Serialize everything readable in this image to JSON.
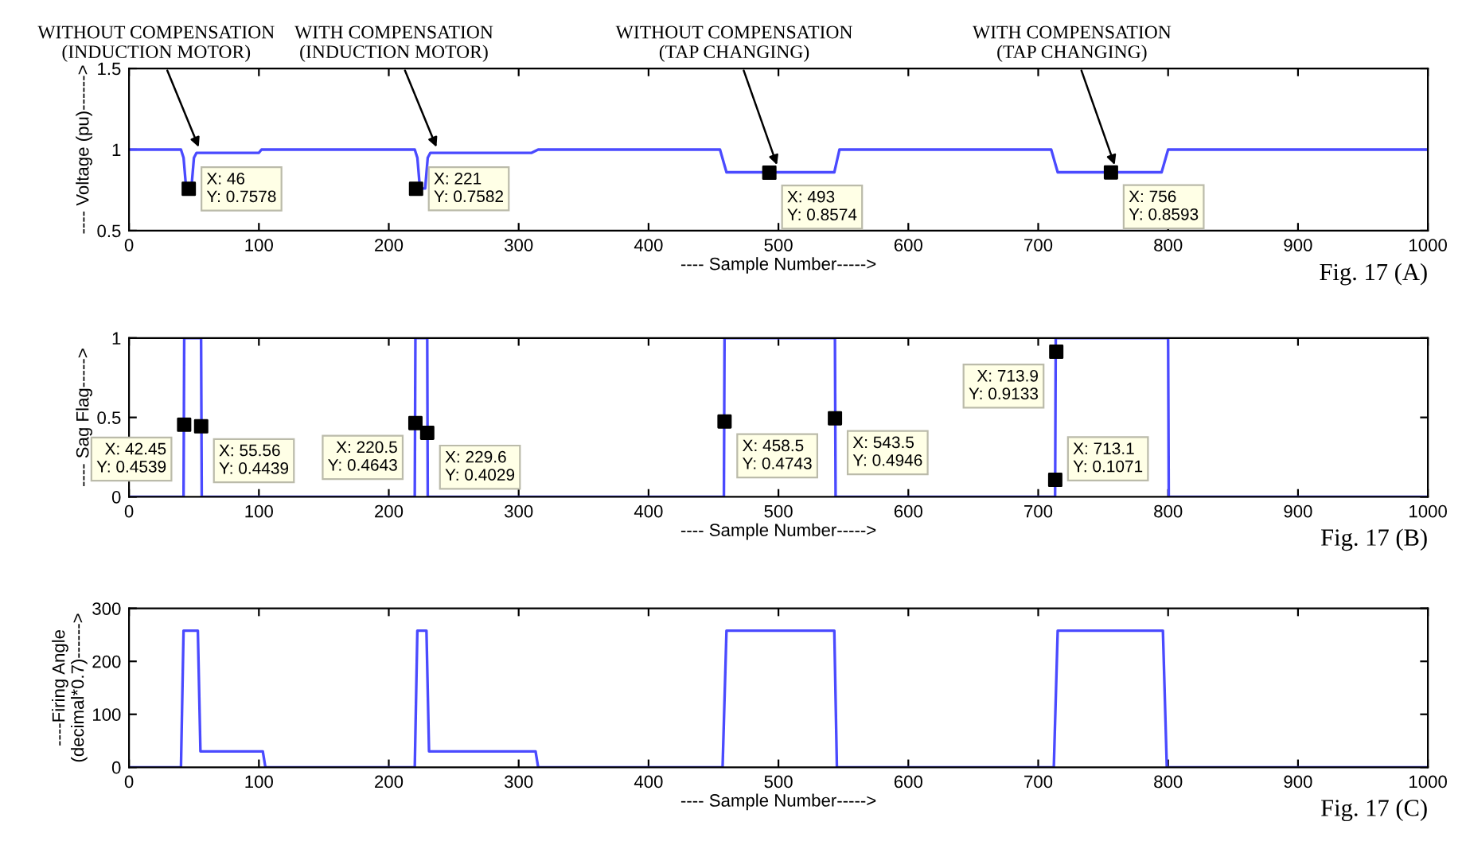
{
  "chart_data": [
    {
      "type": "line",
      "ylabel": "---- Voltage (pu)------>",
      "xlabel": "---- Sample Number----->",
      "xlim": [
        0,
        1000
      ],
      "xticks": [
        0,
        100,
        200,
        300,
        400,
        500,
        600,
        700,
        800,
        900,
        1000
      ],
      "ylim": [
        0.5,
        1.5
      ],
      "yticks": [
        0.5,
        1,
        1.5
      ],
      "annotations": [
        {
          "text": "WITHOUT COMPENSATION\n(INDUCTION MOTOR)",
          "x": 55,
          "y": 0.99
        },
        {
          "text": "WITH COMPENSATION\n(INDUCTION MOTOR)",
          "x": 238,
          "y": 0.99
        },
        {
          "text": "WITHOUT COMPENSATION\n(TAP CHANGING)",
          "x": 500,
          "y": 0.88
        },
        {
          "text": "WITH COMPENSATION\n(TAP CHANGING)",
          "x": 760,
          "y": 0.88
        },
        "Fig. 17 (A)"
      ],
      "series": [
        {
          "color": "#4a4aff",
          "x": [
            0,
            40,
            42,
            44,
            48,
            50,
            52,
            100,
            102,
            220,
            222,
            224,
            228,
            230,
            232,
            310,
            315,
            455,
            460,
            543,
            547,
            710,
            715,
            795,
            800,
            1000
          ],
          "values": [
            1.0,
            1.0,
            0.95,
            0.76,
            0.76,
            0.95,
            0.98,
            0.98,
            1.0,
            1.0,
            0.95,
            0.76,
            0.76,
            0.95,
            0.98,
            0.98,
            1.0,
            1.0,
            0.86,
            0.86,
            1.0,
            1.0,
            0.86,
            0.86,
            1.0,
            1.0
          ]
        },
        {
          "type": "scatter",
          "marker": "square",
          "color": "#000000",
          "x": [
            46,
            221,
            493,
            756
          ],
          "values": [
            0.7578,
            0.7582,
            0.8574,
            0.8593
          ],
          "value_labels": [
            "X: 46\nY: 0.7578",
            "X: 221\nY: 0.7582",
            "X: 493\nY: 0.8574",
            "X: 756\nY: 0.8593"
          ]
        }
      ]
    },
    {
      "type": "line",
      "ylabel": "---- Sag Flag----->",
      "xlabel": "---- Sample Number----->",
      "xlim": [
        0,
        1000
      ],
      "xticks": [
        0,
        100,
        200,
        300,
        400,
        500,
        600,
        700,
        800,
        900,
        1000
      ],
      "ylim": [
        0,
        1
      ],
      "yticks": [
        0,
        0.5,
        1
      ],
      "annotations": [
        "Fig. 17 (B)"
      ],
      "series": [
        {
          "color": "#4a4aff",
          "x": [
            0,
            42,
            42.5,
            55.5,
            56,
            220,
            220.5,
            229.6,
            230,
            458,
            458.5,
            543.5,
            544,
            713,
            713.5,
            800,
            800.5,
            1000
          ],
          "values": [
            0,
            0,
            1,
            1,
            0,
            0,
            1,
            1,
            0,
            0,
            1,
            1,
            0,
            0,
            1,
            1,
            0,
            0
          ]
        },
        {
          "type": "scatter",
          "marker": "square",
          "color": "#000000",
          "x": [
            42.45,
            55.56,
            220.5,
            229.6,
            458.5,
            543.5,
            713.9,
            713.1
          ],
          "values": [
            0.4539,
            0.4439,
            0.4643,
            0.4029,
            0.4743,
            0.4946,
            0.9133,
            0.1071
          ],
          "value_labels": [
            "X: 42.45\nY: 0.4539",
            "X: 55.56\nY: 0.4439",
            "X: 220.5\nY: 0.4643",
            "X: 229.6\nY: 0.4029",
            "X: 458.5\nY: 0.4743",
            "X: 543.5\nY: 0.4946",
            "X: 713.9\nY: 0.9133",
            "X: 713.1\nY: 0.1071"
          ]
        }
      ]
    },
    {
      "type": "line",
      "ylabel": "----Firing Angle\n(decimal*0.7)------>",
      "xlabel": "---- Sample Number----->",
      "xlim": [
        0,
        1000
      ],
      "xticks": [
        0,
        100,
        200,
        300,
        400,
        500,
        600,
        700,
        800,
        900,
        1000
      ],
      "ylim": [
        0,
        300
      ],
      "yticks": [
        0,
        100,
        200,
        300
      ],
      "annotations": [
        "Fig. 17 (C)"
      ],
      "series": [
        {
          "color": "#4a4aff",
          "x": [
            0,
            40,
            42,
            53,
            55,
            103,
            105,
            220,
            222,
            229,
            231,
            313,
            315,
            457,
            460,
            543,
            545,
            712,
            715,
            796,
            799,
            1000
          ],
          "values": [
            0,
            0,
            258,
            258,
            30,
            30,
            0,
            0,
            258,
            258,
            30,
            30,
            0,
            0,
            258,
            258,
            0,
            0,
            258,
            258,
            0,
            0
          ]
        }
      ]
    }
  ]
}
